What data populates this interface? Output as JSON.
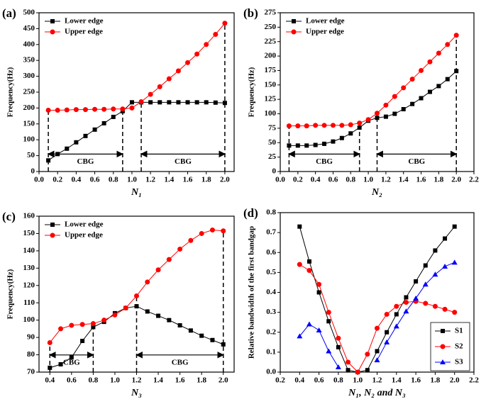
{
  "chart_data": [
    {
      "type": "line",
      "label": "(a)",
      "x_label": "N₁",
      "y_label": "Frequency(Hz)",
      "x": [
        0.1,
        0.2,
        0.3,
        0.4,
        0.5,
        0.6,
        0.7,
        0.8,
        0.9,
        1.0,
        1.1,
        1.2,
        1.3,
        1.4,
        1.5,
        1.6,
        1.7,
        1.8,
        1.9,
        2.0
      ],
      "series": [
        {
          "name": "Lower edge",
          "color": "#000000",
          "marker": "square",
          "values": [
            35,
            55,
            72,
            92,
            112,
            132,
            152,
            172,
            190,
            218,
            218,
            218,
            218,
            218,
            218,
            218,
            218,
            218,
            217,
            216
          ]
        },
        {
          "name": "Upper edge",
          "color": "#ff0000",
          "marker": "circle",
          "values": [
            193,
            193,
            194,
            195,
            195,
            196,
            196,
            197,
            197,
            200,
            220,
            243,
            267,
            292,
            317,
            343,
            370,
            400,
            432,
            467
          ]
        }
      ],
      "bands": [
        {
          "label": "CBG",
          "x": [
            0.1,
            0.9
          ]
        },
        {
          "label": "CBG",
          "x": [
            1.1,
            2.0
          ]
        }
      ],
      "xlim": [
        0,
        2.1
      ],
      "xticks": [
        {
          "value": 0,
          "label": "0.0"
        },
        0.2,
        0.4,
        0.6,
        0.8,
        {
          "value": 1,
          "label": "1.0"
        },
        1.2,
        1.4,
        1.6,
        1.8,
        {
          "value": 2,
          "label": "2.0"
        }
      ],
      "ylim": [
        0,
        500
      ],
      "yticks": [
        0,
        50,
        100,
        150,
        200,
        250,
        300,
        350,
        400,
        450,
        500
      ],
      "legend": "upper left"
    },
    {
      "type": "line",
      "label": "(b)",
      "x_label": "N₂",
      "y_label": "Frequency(Hz)",
      "x": [
        0.1,
        0.2,
        0.3,
        0.4,
        0.5,
        0.6,
        0.7,
        0.8,
        0.9,
        1.0,
        1.1,
        1.2,
        1.3,
        1.4,
        1.5,
        1.6,
        1.7,
        1.8,
        1.9,
        2.0
      ],
      "series": [
        {
          "name": "Lower edge",
          "color": "#000000",
          "marker": "square",
          "values": [
            45,
            45,
            45,
            46,
            48,
            52,
            58,
            66,
            76,
            88,
            93,
            95,
            100,
            108,
            117,
            127,
            138,
            148,
            160,
            174
          ]
        },
        {
          "name": "Upper edge",
          "color": "#ff0000",
          "marker": "circle",
          "values": [
            79,
            79,
            79,
            80,
            80,
            80,
            80,
            81,
            84,
            90,
            101,
            115,
            130,
            145,
            160,
            175,
            190,
            205,
            220,
            236
          ]
        }
      ],
      "bands": [
        {
          "label": "CBG",
          "x": [
            0.1,
            0.9
          ]
        },
        {
          "label": "CBG",
          "x": [
            1.1,
            2.0
          ]
        }
      ],
      "xlim": [
        0,
        2.2
      ],
      "xticks": [
        {
          "value": 0,
          "label": "0.0"
        },
        0.2,
        0.4,
        0.6,
        0.8,
        {
          "value": 1,
          "label": "1.0"
        },
        1.2,
        1.4,
        1.6,
        1.8,
        {
          "value": 2,
          "label": "2.0"
        },
        2.2
      ],
      "ylim": [
        0,
        275
      ],
      "yticks": [
        0,
        25,
        50,
        75,
        100,
        125,
        150,
        175,
        200,
        225,
        250,
        275
      ],
      "legend": "upper left"
    },
    {
      "type": "line",
      "label": "(c)",
      "x_label": "N₃",
      "y_label": "Frequency(Hz)",
      "x": [
        0.4,
        0.5,
        0.6,
        0.7,
        0.8,
        0.9,
        1.0,
        1.1,
        1.2,
        1.3,
        1.4,
        1.5,
        1.6,
        1.7,
        1.8,
        1.9,
        2.0
      ],
      "series": [
        {
          "name": "Lower edge",
          "color": "#000000",
          "marker": "square",
          "values": [
            72.5,
            74.5,
            78.5,
            88,
            96,
            99,
            104,
            107,
            108,
            105,
            102.5,
            100,
            97,
            94,
            91,
            88.5,
            86
          ]
        },
        {
          "name": "Upper edge",
          "color": "#ff0000",
          "marker": "circle",
          "values": [
            87,
            95,
            97,
            97.5,
            98,
            100,
            103,
            107,
            114,
            122,
            129,
            135,
            141,
            146,
            150,
            152,
            151.5
          ]
        }
      ],
      "bands": [
        {
          "label": "CBG",
          "x": [
            0.4,
            0.8
          ]
        },
        {
          "label": "CBG",
          "x": [
            1.2,
            2.0
          ]
        }
      ],
      "xlim": [
        0.3,
        2.1
      ],
      "xticks": [
        0.4,
        0.6,
        0.8,
        {
          "value": 1,
          "label": "1.0"
        },
        1.2,
        1.4,
        1.6,
        1.8,
        {
          "value": 2,
          "label": "2.0"
        }
      ],
      "ylim": [
        70,
        160
      ],
      "yticks": [
        70,
        80,
        90,
        100,
        110,
        120,
        130,
        140,
        150,
        160
      ],
      "legend": "upper left"
    },
    {
      "type": "line",
      "label": "(d)",
      "x_label": "N₁, N₂ and N₃",
      "y_label": "Relative bandwidth of the first bandgap",
      "x": [
        0.4,
        0.5,
        0.6,
        0.7,
        0.8,
        0.9,
        1.0,
        1.1,
        1.2,
        1.3,
        1.4,
        1.5,
        1.6,
        1.7,
        1.8,
        1.9,
        2.0
      ],
      "series": [
        {
          "name": "S1",
          "color": "#000000",
          "marker": "square",
          "values": [
            0.73,
            0.555,
            0.4,
            0.255,
            0.125,
            0.01,
            0,
            0.01,
            0.105,
            0.2,
            0.29,
            0.375,
            0.455,
            0.535,
            0.61,
            0.67,
            0.73
          ]
        },
        {
          "name": "S2",
          "color": "#ff0000",
          "marker": "circle",
          "values": [
            0.54,
            0.51,
            0.44,
            0.3,
            0.17,
            0.05,
            0,
            0.09,
            0.22,
            0.29,
            0.33,
            0.35,
            0.355,
            0.345,
            0.33,
            0.315,
            0.3
          ]
        },
        {
          "name": "S3",
          "color": "#0000ff",
          "marker": "triangle",
          "values": [
            0.18,
            0.24,
            0.21,
            0.105,
            0.025,
            null,
            null,
            null,
            0.06,
            0.15,
            0.23,
            0.305,
            0.37,
            0.44,
            0.49,
            0.53,
            0.55
          ]
        }
      ],
      "xlim": [
        0.2,
        2.2
      ],
      "xticks": [
        0.2,
        0.4,
        0.6,
        0.8,
        {
          "value": 1,
          "label": "1.0"
        },
        1.2,
        1.4,
        1.6,
        1.8,
        {
          "value": 2,
          "label": "2.0"
        },
        2.2
      ],
      "ylim": [
        0,
        0.8
      ],
      "yticks": [
        {
          "value": 0,
          "label": "0.0"
        },
        0.1,
        0.2,
        0.3,
        0.4,
        0.5,
        0.6,
        0.7,
        0.8
      ],
      "legend": "lower right"
    }
  ]
}
